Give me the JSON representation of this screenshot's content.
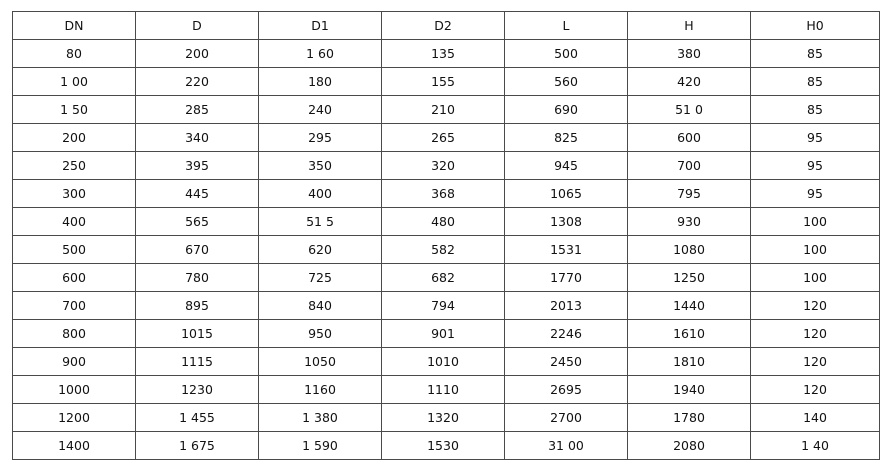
{
  "table": {
    "headers": [
      "DN",
      "D",
      "D1",
      "D2",
      "L",
      "H",
      "H0"
    ],
    "rows": [
      [
        "80",
        "200",
        "1 60",
        "135",
        "500",
        "380",
        "85"
      ],
      [
        "1 00",
        "220",
        "180",
        "155",
        "560",
        "420",
        "85"
      ],
      [
        "1 50",
        "285",
        "240",
        "210",
        "690",
        "51 0",
        "85"
      ],
      [
        "200",
        "340",
        "295",
        "265",
        "825",
        "600",
        "95"
      ],
      [
        "250",
        "395",
        "350",
        "320",
        "945",
        "700",
        "95"
      ],
      [
        "300",
        "445",
        "400",
        "368",
        "1065",
        "795",
        "95"
      ],
      [
        "400",
        "565",
        "51 5",
        "480",
        "1308",
        "930",
        "100"
      ],
      [
        "500",
        "670",
        "620",
        "582",
        "1531",
        "1080",
        "100"
      ],
      [
        "600",
        "780",
        "725",
        "682",
        "1770",
        "1250",
        "100"
      ],
      [
        "700",
        "895",
        "840",
        "794",
        "2013",
        "1440",
        "120"
      ],
      [
        "800",
        "1015",
        "950",
        "901",
        "2246",
        "1610",
        "120"
      ],
      [
        "900",
        "1115",
        "1050",
        "1010",
        "2450",
        "1810",
        "120"
      ],
      [
        "1000",
        "1230",
        "1160",
        "1110",
        "2695",
        "1940",
        "120"
      ],
      [
        "1200",
        "1 455",
        "1 380",
        "1320",
        "2700",
        "1780",
        "140"
      ],
      [
        "1400",
        "1 675",
        "1 590",
        "1530",
        "31 00",
        "2080",
        "1 40"
      ]
    ]
  }
}
